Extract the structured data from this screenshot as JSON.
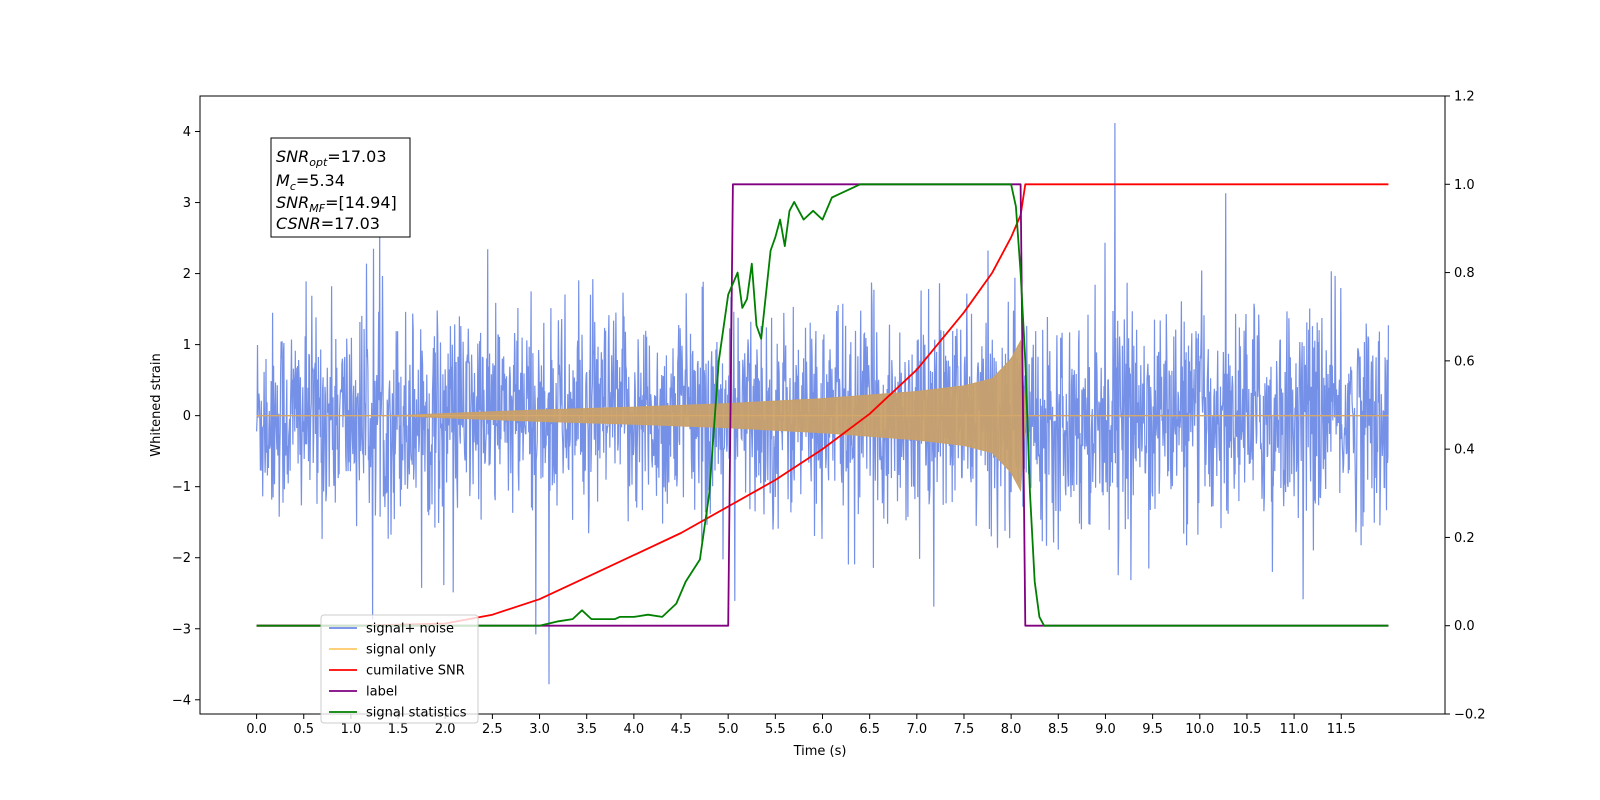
{
  "chart_data": {
    "type": "line",
    "title": "",
    "xlabel": "Time (s)",
    "ylabel": "Whitened strain",
    "xlim": [
      -0.6,
      12.6
    ],
    "ylim": [
      -4.2,
      4.5
    ],
    "y2lim": [
      -0.2,
      1.2
    ],
    "x_ticks": [
      0.0,
      0.5,
      1.0,
      1.5,
      2.0,
      2.5,
      3.0,
      3.5,
      4.0,
      4.5,
      5.0,
      5.5,
      6.0,
      6.5,
      7.0,
      7.5,
      8.0,
      8.5,
      9.0,
      9.5,
      10.0,
      10.5,
      11.0,
      11.5
    ],
    "x_tick_labels": [
      "0.0",
      "0.5",
      "1.0",
      "1.5",
      "2.0",
      "2.5",
      "3.0",
      "3.5",
      "4.0",
      "4.5",
      "5.0",
      "5.5",
      "6.0",
      "6.5",
      "7.0",
      "7.5",
      "8.0",
      "8.5",
      "9.0",
      "9.5",
      "10.0",
      "10.5",
      "11.0",
      "11.5"
    ],
    "y_ticks": [
      -4,
      -3,
      -2,
      -1,
      0,
      1,
      2,
      3,
      4
    ],
    "y_tick_labels": [
      "−4",
      "−3",
      "−2",
      "−1",
      "0",
      "1",
      "2",
      "3",
      "4"
    ],
    "y2_ticks": [
      -0.2,
      0.0,
      0.2,
      0.4,
      0.6,
      0.8,
      1.0,
      1.2
    ],
    "y2_tick_labels": [
      "−0.2",
      "0.0",
      "0.2",
      "0.4",
      "0.6",
      "0.8",
      "1.0",
      "1.2"
    ],
    "grid": false,
    "legend_position": "lower-left",
    "annotation": {
      "snr_opt": "=17.03",
      "mc": "=5.34",
      "snr_mf": "=[14.94]",
      "csnr": "=17.03"
    },
    "series": [
      {
        "name": "signal+ noise",
        "axis": "left",
        "color": "#6e8ae6",
        "description_kind": "noise",
        "t_range": [
          0.0,
          12.0
        ],
        "envelope_typical": 1.3,
        "peak_max": 4.12,
        "peak_max_time": 9.1,
        "peak_min": -3.78,
        "peak_min_time": 3.1
      },
      {
        "name": "signal only",
        "axis": "left",
        "color": "#ffc966",
        "description_kind": "chirp",
        "t_range": [
          0.0,
          12.0
        ],
        "chirp_start": 1.5,
        "merger_time": 8.1,
        "envelope_x": [
          0.0,
          1.5,
          2.0,
          3.0,
          4.0,
          5.0,
          6.0,
          7.0,
          7.5,
          7.8,
          8.0,
          8.1,
          8.15,
          12.0
        ],
        "envelope_y": [
          0.0,
          0.0,
          0.03,
          0.08,
          0.12,
          0.17,
          0.24,
          0.34,
          0.42,
          0.52,
          0.8,
          1.05,
          0.0,
          0.0
        ]
      },
      {
        "name": "cumilative SNR",
        "axis": "right",
        "color": "#ff0000",
        "x": [
          0.0,
          1.0,
          2.0,
          2.5,
          3.0,
          3.5,
          4.0,
          4.5,
          5.0,
          5.5,
          6.0,
          6.5,
          7.0,
          7.5,
          7.8,
          8.0,
          8.1,
          8.15,
          12.0
        ],
        "values": [
          0.0,
          0.0,
          0.005,
          0.025,
          0.06,
          0.11,
          0.16,
          0.21,
          0.27,
          0.33,
          0.4,
          0.48,
          0.58,
          0.71,
          0.8,
          0.88,
          0.93,
          1.0,
          1.0
        ]
      },
      {
        "name": "label",
        "axis": "right",
        "color": "#800080",
        "x": [
          0.0,
          5.0,
          5.05,
          8.1,
          8.15,
          12.0
        ],
        "values": [
          0.0,
          0.0,
          1.0,
          1.0,
          0.0,
          0.0
        ]
      },
      {
        "name": "signal statistics",
        "axis": "right",
        "color": "#008000",
        "x": [
          0.0,
          3.0,
          3.2,
          3.35,
          3.45,
          3.55,
          3.8,
          3.85,
          4.0,
          4.15,
          4.3,
          4.45,
          4.55,
          4.7,
          4.8,
          4.9,
          5.0,
          5.1,
          5.15,
          5.2,
          5.25,
          5.3,
          5.35,
          5.4,
          5.45,
          5.5,
          5.55,
          5.6,
          5.65,
          5.7,
          5.8,
          5.9,
          6.0,
          6.1,
          6.2,
          6.4,
          6.6,
          6.8,
          7.0,
          7.5,
          8.0,
          8.05,
          8.1,
          8.15,
          8.2,
          8.25,
          8.3,
          8.35,
          8.4,
          12.0
        ],
        "values": [
          0.0,
          0.0,
          0.01,
          0.015,
          0.035,
          0.015,
          0.015,
          0.02,
          0.02,
          0.025,
          0.02,
          0.05,
          0.1,
          0.15,
          0.3,
          0.6,
          0.75,
          0.8,
          0.72,
          0.74,
          0.82,
          0.68,
          0.65,
          0.75,
          0.85,
          0.88,
          0.92,
          0.86,
          0.94,
          0.96,
          0.92,
          0.94,
          0.92,
          0.97,
          0.98,
          1.0,
          1.0,
          1.0,
          1.0,
          1.0,
          1.0,
          0.95,
          0.8,
          0.6,
          0.3,
          0.1,
          0.02,
          0.0,
          0.0,
          0.0
        ]
      }
    ]
  }
}
